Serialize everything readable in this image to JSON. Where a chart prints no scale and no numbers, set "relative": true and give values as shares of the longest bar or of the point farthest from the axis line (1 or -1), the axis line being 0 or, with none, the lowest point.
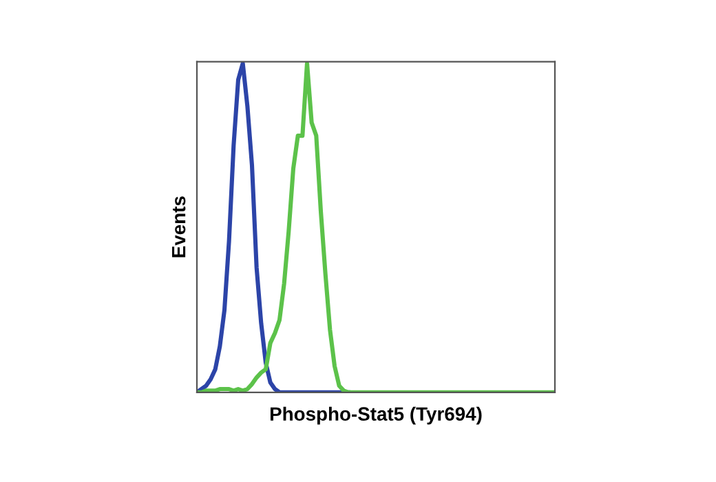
{
  "chart_data": {
    "type": "line",
    "relative": true,
    "xlabel": "Phospho-Stat5 (Tyr694)",
    "ylabel": "Events",
    "categories": [
      null,
      null,
      null,
      null,
      null,
      null,
      null,
      null,
      null,
      null,
      null,
      null,
      null,
      null,
      null,
      null,
      null,
      null,
      null,
      null,
      null,
      null,
      null,
      null,
      null,
      null,
      null,
      null,
      null,
      null,
      null,
      null,
      null,
      null,
      null,
      null,
      null,
      null,
      null,
      null,
      null,
      null,
      null,
      null,
      null,
      null,
      null,
      null,
      null,
      null,
      null,
      null,
      null,
      null,
      null,
      null,
      null,
      null,
      null,
      null,
      null,
      null,
      null,
      null,
      null,
      null,
      null,
      null,
      null,
      null,
      null,
      null,
      null,
      null,
      null,
      null,
      null,
      null,
      null
    ],
    "series": [
      {
        "color": "#2c44a8",
        "values": [
          0,
          0.01,
          0.02,
          0.04,
          0.07,
          0.14,
          0.25,
          0.46,
          0.75,
          0.95,
          1.0,
          0.87,
          0.69,
          0.38,
          0.21,
          0.09,
          0.03,
          0.01,
          0,
          0,
          0,
          0,
          0,
          0,
          0,
          0,
          0,
          0,
          0,
          0,
          0,
          0,
          0,
          0,
          null,
          null,
          null,
          null,
          null,
          null,
          null,
          null,
          null,
          null,
          null,
          null,
          null,
          null,
          null,
          null,
          null,
          null,
          null,
          null,
          null,
          null,
          null,
          null,
          null,
          null,
          null,
          null,
          null,
          null,
          null,
          null,
          null,
          null,
          null,
          null,
          null,
          null,
          null,
          null,
          null,
          null,
          null,
          null,
          null
        ]
      },
      {
        "color": "#5cc24a",
        "values": [
          0,
          0,
          0.005,
          0.005,
          0.005,
          0.01,
          0.01,
          0.01,
          0.005,
          0.01,
          0.005,
          0.01,
          0.025,
          0.045,
          0.06,
          0.07,
          0.15,
          0.18,
          0.22,
          0.33,
          0.49,
          0.68,
          0.78,
          0.78,
          1.0,
          0.82,
          0.78,
          0.55,
          0.36,
          0.19,
          0.08,
          0.02,
          0.005,
          0,
          0,
          0,
          0,
          0,
          0,
          0,
          0,
          0,
          0,
          0,
          0,
          0,
          0,
          0,
          0,
          0,
          0,
          0,
          0,
          0,
          0,
          0,
          0,
          0,
          0,
          0,
          0,
          0,
          0,
          0,
          0,
          0,
          0,
          0,
          0,
          0,
          0,
          0,
          0,
          0,
          0,
          0,
          0,
          0,
          0
        ]
      }
    ],
    "grid": false,
    "line_style": "solid",
    "marker": "none"
  }
}
